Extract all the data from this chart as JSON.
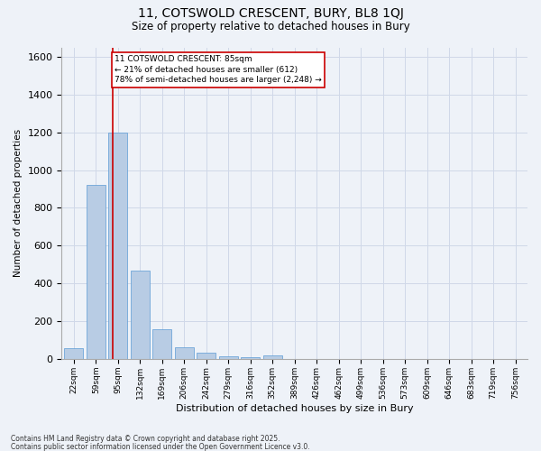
{
  "title_line1": "11, COTSWOLD CRESCENT, BURY, BL8 1QJ",
  "title_line2": "Size of property relative to detached houses in Bury",
  "xlabel": "Distribution of detached houses by size in Bury",
  "ylabel": "Number of detached properties",
  "categories": [
    "22sqm",
    "59sqm",
    "95sqm",
    "132sqm",
    "169sqm",
    "206sqm",
    "242sqm",
    "279sqm",
    "316sqm",
    "352sqm",
    "389sqm",
    "426sqm",
    "462sqm",
    "499sqm",
    "536sqm",
    "573sqm",
    "609sqm",
    "646sqm",
    "683sqm",
    "719sqm",
    "756sqm"
  ],
  "values": [
    55,
    920,
    1200,
    470,
    155,
    60,
    35,
    15,
    10,
    20,
    0,
    0,
    0,
    0,
    0,
    0,
    0,
    0,
    0,
    0,
    0
  ],
  "bar_color": "#b8cce4",
  "bar_edge_color": "#5b9bd5",
  "grid_color": "#d0d8e8",
  "bg_color": "#eef2f8",
  "vline_color": "#cc0000",
  "annotation_text": "11 COTSWOLD CRESCENT: 85sqm\n← 21% of detached houses are smaller (612)\n78% of semi-detached houses are larger (2,248) →",
  "annotation_box_color": "#ffffff",
  "annotation_box_edge": "#cc0000",
  "ylim": [
    0,
    1650
  ],
  "footnote1": "Contains HM Land Registry data © Crown copyright and database right 2025.",
  "footnote2": "Contains public sector information licensed under the Open Government Licence v3.0."
}
